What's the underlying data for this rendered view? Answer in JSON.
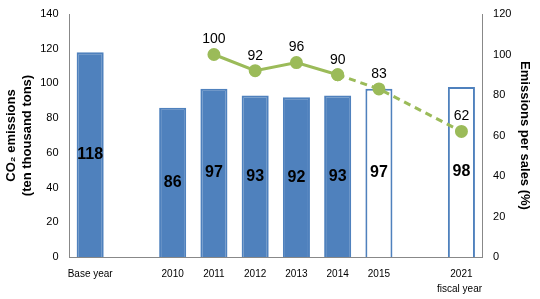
{
  "chart_data": {
    "type": "bar",
    "categories": [
      "Base year",
      null,
      "2010",
      "2011",
      "2012",
      "2013",
      "2014",
      "2015",
      null,
      "2021"
    ],
    "x_label": "fiscal year",
    "y_label": [
      "CO₂ emissions",
      "(ten thousand tons)"
    ],
    "y2_label": "Emissions per sales (%)",
    "ylim": [
      0,
      140
    ],
    "yticks": [
      0,
      20,
      40,
      60,
      80,
      100,
      120,
      140
    ],
    "y2lim": [
      0,
      120
    ],
    "y2ticks": [
      0,
      20,
      40,
      60,
      80,
      100,
      120
    ],
    "grid": false,
    "data_labels": true,
    "series": [
      {
        "type": "bar",
        "color": "#4F81BD",
        "colors": [
          "#4F81BD",
          null,
          "#4F81BD",
          "#4F81BD",
          "#4F81BD",
          "#4F81BD",
          "#4F81BD",
          "#FFFFFF",
          null,
          "#FFFFFF"
        ],
        "values": [
          118,
          null,
          86,
          97,
          93,
          92,
          93,
          97,
          null,
          98
        ]
      },
      {
        "type": "line",
        "axis": "y2",
        "color": "#9BBB59",
        "marker": "circle",
        "line_style": "solid",
        "values": [
          null,
          null,
          null,
          100,
          92,
          96,
          90,
          null,
          null,
          null
        ]
      },
      {
        "type": "line",
        "axis": "y2",
        "color": "#9BBB59",
        "marker": "circle",
        "line_style": "dashed",
        "values": [
          null,
          null,
          null,
          null,
          null,
          null,
          90,
          83,
          null,
          62
        ]
      }
    ]
  }
}
